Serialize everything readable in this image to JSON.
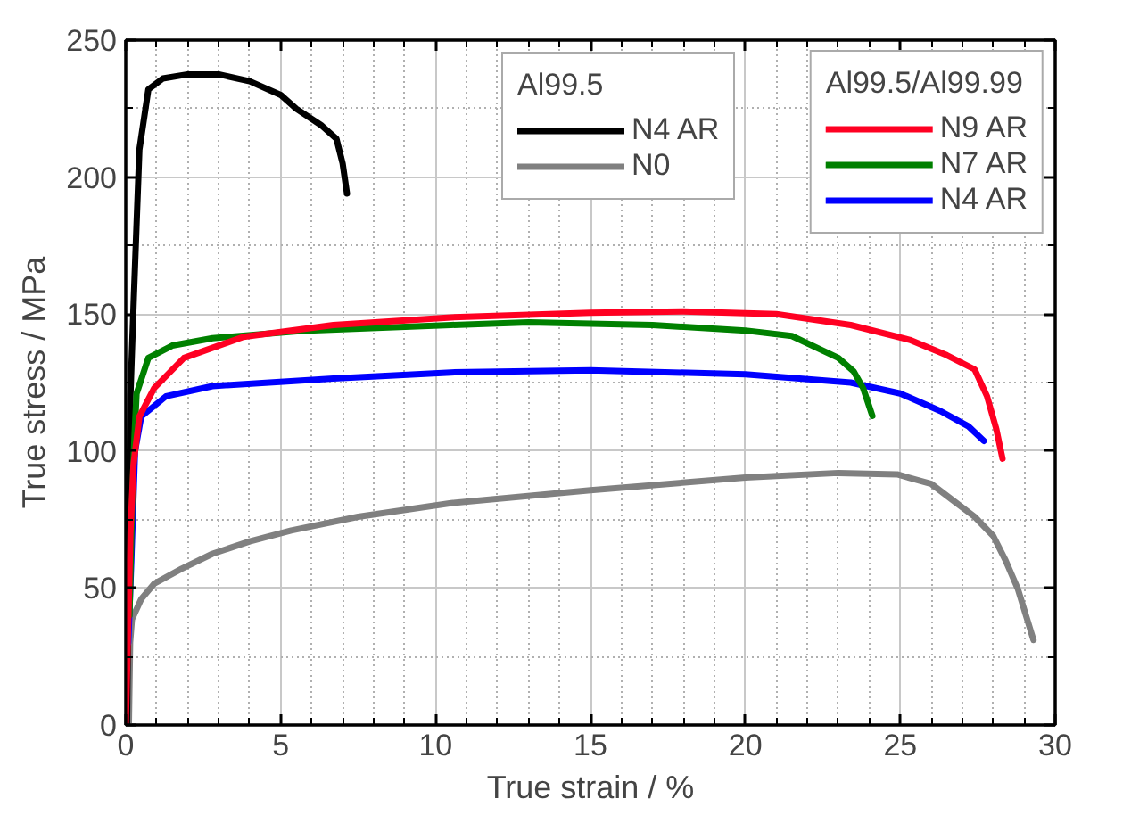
{
  "chart_data": {
    "type": "line",
    "xlabel": "True strain / %",
    "ylabel": "True stress / MPa",
    "xlim": [
      0,
      30
    ],
    "ylim": [
      0,
      250
    ],
    "xticks": [
      0,
      {
        "value": 1,
        "label": null
      },
      {
        "value": 2,
        "label": null
      },
      {
        "value": 3,
        "label": null
      },
      {
        "value": 4,
        "label": null
      },
      5,
      {
        "value": 6,
        "label": null
      },
      {
        "value": 7,
        "label": null
      },
      {
        "value": 8,
        "label": null
      },
      {
        "value": 9,
        "label": null
      },
      10,
      {
        "value": 11,
        "label": null
      },
      {
        "value": 12,
        "label": null
      },
      {
        "value": 13,
        "label": null
      },
      {
        "value": 14,
        "label": null
      },
      15,
      {
        "value": 16,
        "label": null
      },
      {
        "value": 17,
        "label": null
      },
      {
        "value": 18,
        "label": null
      },
      {
        "value": 19,
        "label": null
      },
      20,
      {
        "value": 21,
        "label": null
      },
      {
        "value": 22,
        "label": null
      },
      {
        "value": 23,
        "label": null
      },
      {
        "value": 24,
        "label": null
      },
      25,
      {
        "value": 26,
        "label": null
      },
      {
        "value": 27,
        "label": null
      },
      {
        "value": 28,
        "label": null
      },
      {
        "value": 29,
        "label": null
      },
      30
    ],
    "yticks": [
      0,
      {
        "value": 25,
        "label": null
      },
      50,
      {
        "value": 75,
        "label": null
      },
      100,
      {
        "value": 125,
        "label": null
      },
      150,
      {
        "value": 175,
        "label": null
      },
      200,
      {
        "value": 225,
        "label": null
      },
      250
    ],
    "grid": true,
    "legend": "top right",
    "line_style": "solid",
    "legend_title": [
      "Al99.5/Al99.99",
      "Al99.5"
    ],
    "series": [
      {
        "name": "N9 AR",
        "color": "#ff0022",
        "x": [
          0,
          0.15,
          0.25,
          0.44,
          0.92,
          1.88,
          3.8,
          6.7,
          10.5,
          15,
          18,
          21,
          23.4,
          25.3,
          26.5,
          27.4,
          27.8,
          28.1,
          28.3
        ],
        "values": [
          0,
          70,
          95,
          112.6,
          123,
          134,
          141.7,
          146,
          148.8,
          150.5,
          151,
          150,
          146,
          140.6,
          135,
          129.8,
          120,
          108,
          97.2
        ]
      },
      {
        "name": "N7 AR",
        "color": "#008000",
        "x": [
          0.12,
          0.2,
          0.28,
          0.35,
          0.73,
          1.5,
          2.8,
          5.7,
          10.5,
          13,
          17,
          20,
          21.5,
          23.0,
          23.5,
          23.8,
          24.1
        ],
        "values": [
          40,
          80,
          105,
          121,
          134,
          138.5,
          141.2,
          143.9,
          146,
          147,
          146,
          144,
          142,
          134,
          129,
          123,
          112.8
        ]
      },
      {
        "name": "N4 AR",
        "color": "#0000ff",
        "x": [
          0.08,
          0.18,
          0.3,
          0.5,
          1.3,
          2.8,
          6.7,
          10.5,
          15,
          20,
          23.4,
          25,
          26.3,
          27.2,
          27.7
        ],
        "values": [
          30,
          60,
          100,
          112.6,
          120,
          123.7,
          126.5,
          128.7,
          129.5,
          128,
          125,
          121,
          114.6,
          109,
          103.7
        ]
      },
      {
        "name": "N4 AR",
        "color": "#000000",
        "x": [
          0.04,
          0.15,
          0.26,
          0.44,
          0.73,
          1.2,
          2,
          3,
          4,
          5,
          5.5,
          6.3,
          6.8,
          7.0,
          7.14
        ],
        "values": [
          0,
          120,
          156,
          210,
          232,
          236,
          237.5,
          237.5,
          235,
          230,
          225,
          219,
          214,
          205,
          194
        ]
      },
      {
        "name": "N0",
        "color": "#808080",
        "x": [
          0.1,
          0.14,
          0.2,
          0.5,
          0.92,
          1.8,
          2.8,
          4,
          5.34,
          7.5,
          10.5,
          15,
          20,
          23,
          24.9,
          26,
          26.7,
          27.4,
          28,
          28.4,
          28.8,
          29.3
        ],
        "values": [
          0,
          30,
          38.6,
          46,
          51.6,
          57,
          62.5,
          67,
          71,
          76,
          81,
          85.7,
          90.3,
          92,
          91.5,
          88,
          82,
          76,
          69,
          60,
          49.5,
          31
        ]
      }
    ]
  }
}
